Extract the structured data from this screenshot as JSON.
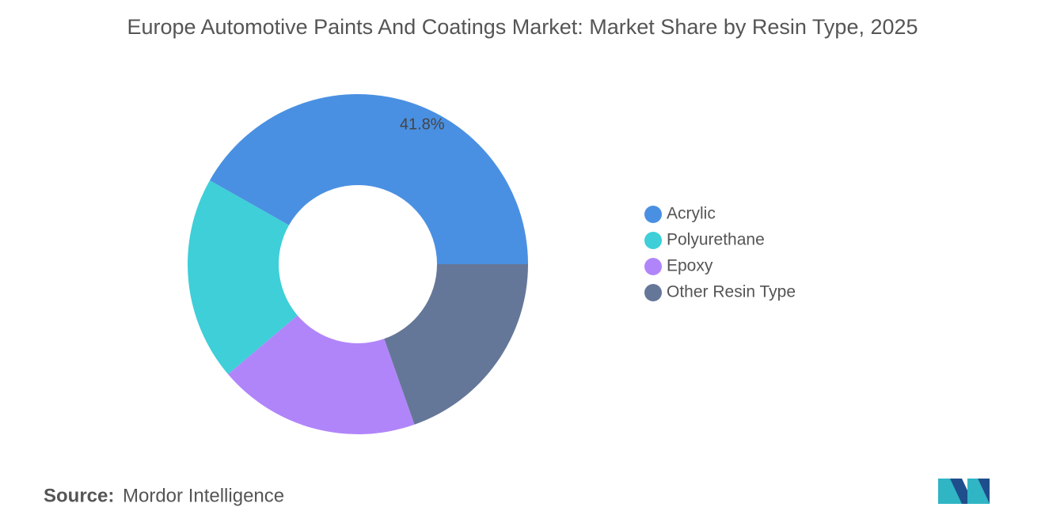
{
  "chart_data": {
    "type": "donut",
    "title": "Europe Automotive Paints And Coatings Market: Market Share by Resin Type, 2025",
    "categories": [
      "Acrylic",
      "Polyurethane",
      "Epoxy",
      "Other Resin Type"
    ],
    "values": [
      41.8,
      19.4,
      19.2,
      19.6
    ],
    "value_labels": [
      "41.8%",
      null,
      null,
      null
    ],
    "colors": [
      "#4a90e2",
      "#3ecfd8",
      "#b185fa",
      "#657798"
    ],
    "legend": "right"
  },
  "source": {
    "label": "Source:",
    "text": "Mordor Intelligence"
  }
}
